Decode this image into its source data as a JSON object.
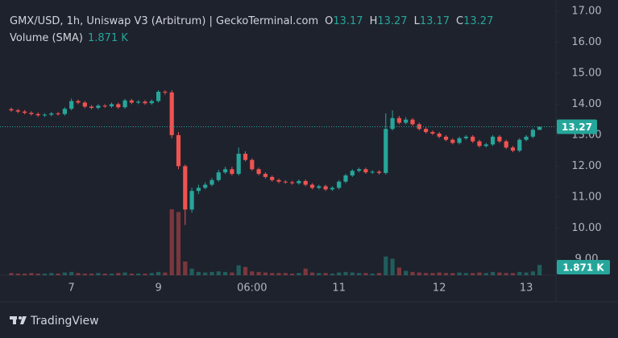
{
  "chart_data": {
    "type": "candlestick",
    "title": "GMX/USD, 1h, Uniswap V3 (Arbitrum) | GeckoTerminal.com",
    "legend": [
      {
        "label": "O",
        "value": 13.17
      },
      {
        "label": "H",
        "value": 13.27
      },
      {
        "label": "L",
        "value": 13.17
      },
      {
        "label": "C",
        "value": 13.27
      }
    ],
    "volume_legend": {
      "label": "Volume (SMA)",
      "value": 1.871,
      "value_label": "1.871 K"
    },
    "categories": [
      null,
      null,
      null,
      null,
      null,
      null,
      null,
      null,
      null,
      "7",
      null,
      null,
      null,
      null,
      null,
      null,
      null,
      null,
      null,
      null,
      null,
      null,
      "9",
      null,
      null,
      null,
      null,
      null,
      null,
      null,
      null,
      null,
      null,
      null,
      null,
      null,
      "06:00",
      null,
      null,
      null,
      null,
      null,
      null,
      null,
      null,
      null,
      null,
      null,
      null,
      "11",
      null,
      null,
      null,
      null,
      null,
      null,
      null,
      null,
      null,
      null,
      null,
      null,
      null,
      null,
      "12",
      null,
      null,
      null,
      null,
      null,
      null,
      null,
      null,
      null,
      null,
      null,
      null,
      "13",
      null,
      null
    ],
    "open": [
      13.84,
      13.8,
      13.76,
      13.72,
      13.68,
      13.64,
      13.66,
      13.7,
      13.68,
      13.85,
      14.1,
      14.05,
      13.92,
      13.88,
      13.95,
      13.93,
      14.0,
      13.9,
      14.12,
      14.05,
      14.08,
      14.03,
      14.1,
      14.4,
      14.38,
      13.0,
      12.0,
      10.6,
      11.2,
      11.3,
      11.4,
      11.55,
      11.8,
      11.9,
      11.75,
      12.4,
      12.2,
      11.9,
      11.75,
      11.65,
      11.55,
      11.5,
      11.48,
      11.45,
      11.52,
      11.4,
      11.3,
      11.35,
      11.25,
      11.3,
      11.5,
      11.7,
      11.85,
      11.9,
      11.8,
      11.82,
      11.78,
      13.2,
      13.55,
      13.4,
      13.5,
      13.35,
      13.2,
      13.1,
      13.05,
      12.95,
      12.85,
      12.75,
      12.9,
      12.95,
      12.8,
      12.65,
      12.7,
      12.95,
      12.8,
      12.6,
      12.5,
      12.85,
      12.95,
      13.17
    ],
    "high": [
      13.89,
      13.85,
      13.81,
      13.77,
      13.73,
      13.71,
      13.75,
      13.75,
      13.9,
      14.18,
      14.15,
      14.1,
      13.97,
      14.0,
      14.0,
      14.05,
      14.05,
      14.17,
      14.17,
      14.13,
      14.13,
      14.15,
      14.45,
      14.45,
      14.45,
      13.1,
      12.05,
      11.3,
      11.4,
      11.48,
      11.62,
      11.88,
      11.98,
      11.98,
      12.6,
      12.48,
      12.25,
      11.95,
      11.8,
      11.7,
      11.6,
      11.55,
      11.53,
      11.57,
      11.57,
      11.45,
      11.4,
      11.4,
      11.35,
      11.55,
      11.75,
      11.9,
      11.95,
      11.95,
      11.87,
      11.87,
      13.7,
      13.8,
      13.62,
      13.58,
      13.55,
      13.4,
      13.25,
      13.15,
      13.1,
      13.0,
      12.9,
      12.95,
      13.0,
      13.0,
      12.85,
      12.75,
      13.0,
      13.0,
      12.85,
      12.65,
      12.9,
      13.0,
      13.22,
      13.27
    ],
    "low": [
      13.75,
      13.71,
      13.67,
      13.63,
      13.59,
      13.59,
      13.61,
      13.63,
      13.63,
      13.8,
      14.0,
      13.87,
      13.83,
      13.83,
      13.88,
      13.88,
      13.85,
      13.85,
      14.0,
      14.0,
      13.98,
      13.98,
      14.05,
      14.3,
      12.9,
      11.9,
      10.1,
      10.5,
      11.1,
      11.25,
      11.35,
      11.5,
      11.75,
      11.7,
      11.7,
      12.15,
      11.85,
      11.7,
      11.6,
      11.5,
      11.45,
      11.43,
      11.4,
      11.4,
      11.35,
      11.25,
      11.25,
      11.2,
      11.2,
      11.25,
      11.45,
      11.65,
      11.8,
      11.75,
      11.75,
      11.73,
      11.73,
      13.15,
      13.35,
      13.35,
      13.3,
      13.15,
      13.05,
      13.0,
      12.9,
      12.8,
      12.7,
      12.7,
      12.85,
      12.75,
      12.6,
      12.6,
      12.65,
      12.75,
      12.55,
      12.45,
      12.45,
      12.8,
      12.9,
      13.17
    ],
    "close": [
      13.8,
      13.76,
      13.72,
      13.68,
      13.64,
      13.66,
      13.7,
      13.68,
      13.85,
      14.1,
      14.05,
      13.92,
      13.88,
      13.95,
      13.93,
      14.0,
      13.9,
      14.12,
      14.05,
      14.08,
      14.03,
      14.1,
      14.4,
      14.38,
      13.0,
      12.0,
      10.6,
      11.2,
      11.3,
      11.4,
      11.55,
      11.8,
      11.9,
      11.75,
      12.4,
      12.2,
      11.9,
      11.75,
      11.65,
      11.55,
      11.5,
      11.48,
      11.45,
      11.52,
      11.4,
      11.3,
      11.35,
      11.25,
      11.3,
      11.5,
      11.7,
      11.85,
      11.9,
      11.8,
      11.82,
      11.78,
      13.2,
      13.55,
      13.4,
      13.5,
      13.35,
      13.2,
      13.1,
      13.05,
      12.95,
      12.85,
      12.75,
      12.9,
      12.95,
      12.8,
      12.65,
      12.7,
      12.95,
      12.8,
      12.6,
      12.5,
      12.85,
      12.95,
      13.17,
      13.27
    ],
    "volume": [
      0.4,
      0.3,
      0.3,
      0.4,
      0.3,
      0.3,
      0.4,
      0.3,
      0.5,
      0.6,
      0.4,
      0.3,
      0.3,
      0.4,
      0.3,
      0.3,
      0.4,
      0.5,
      0.3,
      0.3,
      0.3,
      0.4,
      0.6,
      0.5,
      12.0,
      11.5,
      2.5,
      1.2,
      0.6,
      0.5,
      0.6,
      0.7,
      0.6,
      0.5,
      1.8,
      1.5,
      0.7,
      0.6,
      0.5,
      0.4,
      0.4,
      0.4,
      0.3,
      0.4,
      1.2,
      0.5,
      0.4,
      0.4,
      0.3,
      0.5,
      0.6,
      0.5,
      0.4,
      0.4,
      0.3,
      0.4,
      3.4,
      3.0,
      1.4,
      0.8,
      0.6,
      0.5,
      0.4,
      0.4,
      0.5,
      0.4,
      0.4,
      0.5,
      0.4,
      0.4,
      0.5,
      0.4,
      0.6,
      0.5,
      0.4,
      0.4,
      0.6,
      0.5,
      0.7,
      1.871
    ],
    "up_color": "#26a69a",
    "down_color": "#ef5350",
    "ylim": [
      8.48,
      17.36
    ],
    "yticks": [
      {
        "value": 9,
        "label": "9.00"
      },
      {
        "value": 10,
        "label": "10.00"
      },
      {
        "value": 11,
        "label": "11.00"
      },
      {
        "value": 12,
        "label": "12.00"
      },
      {
        "value": 13,
        "label": "13.00"
      },
      {
        "value": 14,
        "label": "14.00"
      },
      {
        "value": 15,
        "label": "15.00"
      },
      {
        "value": 16,
        "label": "16.00"
      },
      {
        "value": 17,
        "label": "17.00"
      }
    ],
    "grid": false
  },
  "branding": "TradingView"
}
